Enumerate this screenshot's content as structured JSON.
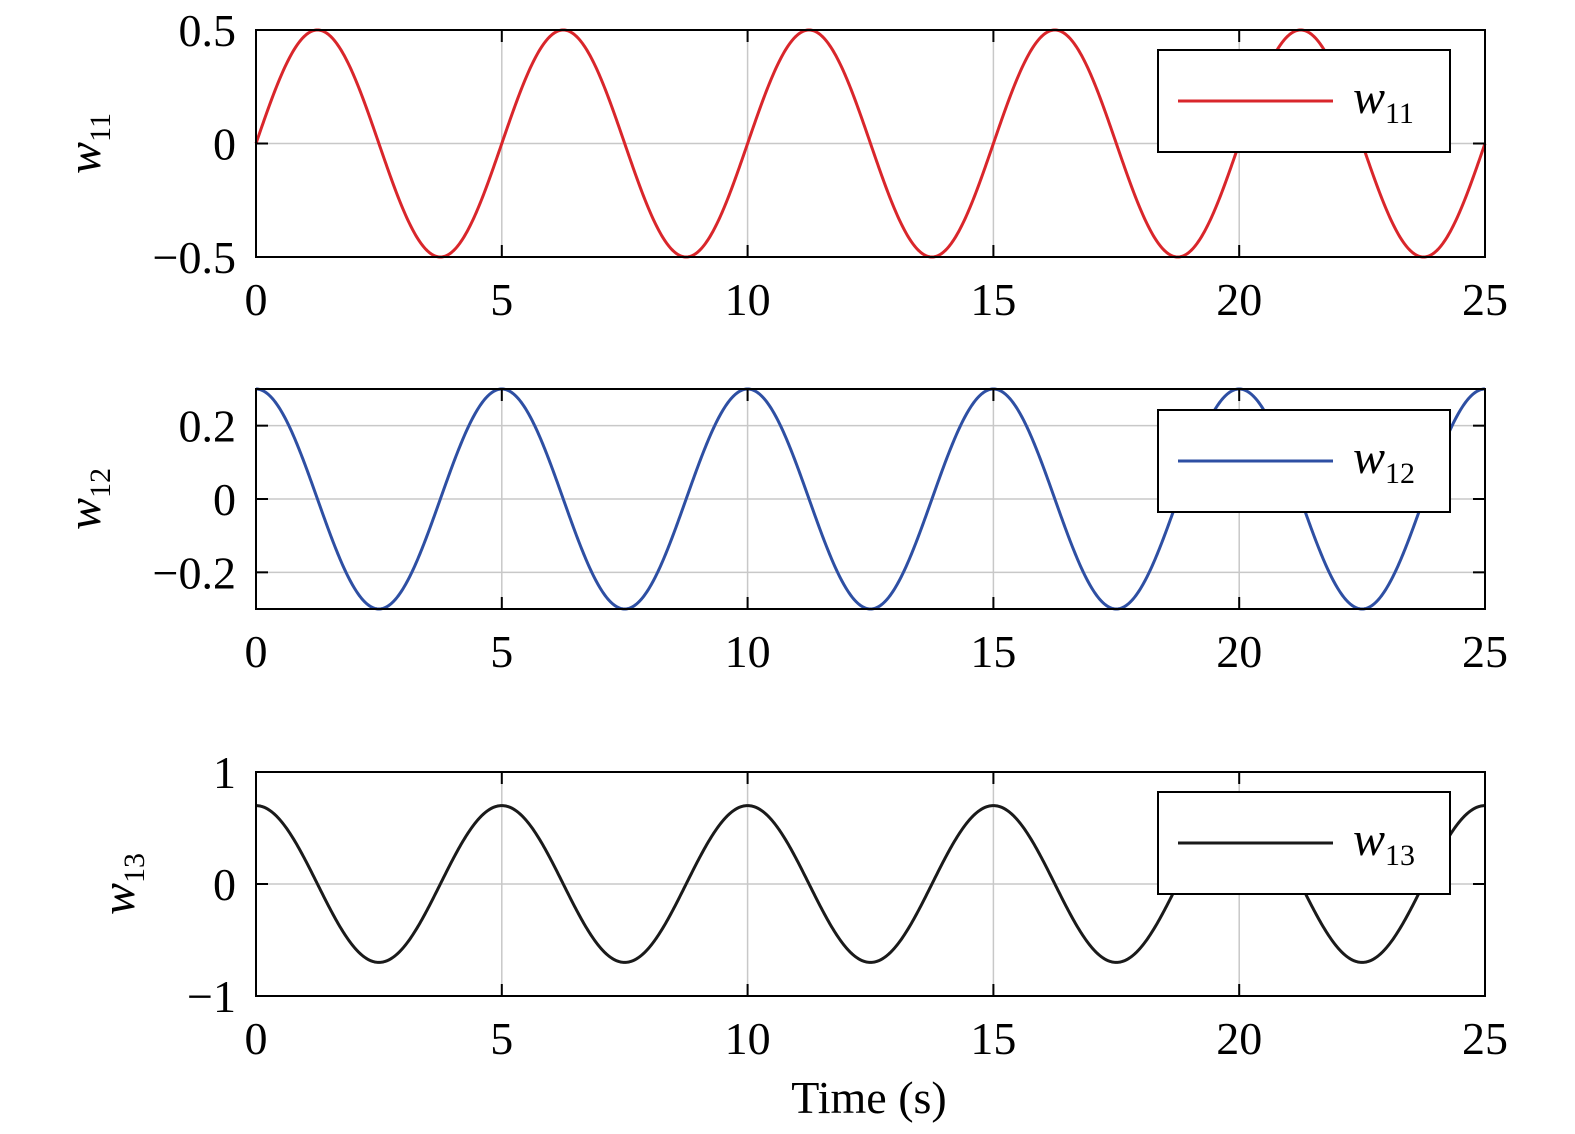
{
  "figure": {
    "xlabel": "Time (s)"
  },
  "chart_data": [
    {
      "type": "line",
      "ylabel": {
        "symbol": "w",
        "subscript": "11"
      },
      "xlim": [
        0,
        25
      ],
      "ylim": [
        -0.5,
        0.5
      ],
      "xticks": [
        0,
        5,
        10,
        15,
        20,
        25
      ],
      "xtick_labels": [
        "0",
        "5",
        "10",
        "15",
        "20",
        "25"
      ],
      "yticks": [
        -0.5,
        0,
        0.5
      ],
      "ytick_labels": [
        "−0.5",
        "0",
        "0.5"
      ],
      "grid": true,
      "legend": {
        "position": "top-right"
      },
      "series": [
        {
          "name": "w11",
          "label_symbol": "w",
          "label_subscript": "11",
          "color": "#d9262b",
          "amplitude": 0.5,
          "period": 5,
          "phase": 0,
          "function": "sin",
          "x_range": [
            0,
            25
          ]
        }
      ]
    },
    {
      "type": "line",
      "ylabel": {
        "symbol": "w",
        "subscript": "12"
      },
      "xlim": [
        0,
        25
      ],
      "ylim": [
        -0.3,
        0.3
      ],
      "xticks": [
        0,
        5,
        10,
        15,
        20,
        25
      ],
      "xtick_labels": [
        "0",
        "5",
        "10",
        "15",
        "20",
        "25"
      ],
      "yticks": [
        -0.2,
        0,
        0.2
      ],
      "ytick_labels": [
        "−0.2",
        "0",
        "0.2"
      ],
      "grid": true,
      "legend": {
        "position": "top-right"
      },
      "series": [
        {
          "name": "w12",
          "label_symbol": "w",
          "label_subscript": "12",
          "color": "#2e4fa3",
          "amplitude": 0.3,
          "period": 5,
          "phase": 0,
          "function": "cos",
          "x_range": [
            0,
            25
          ]
        }
      ]
    },
    {
      "type": "line",
      "ylabel": {
        "symbol": "w",
        "subscript": "13"
      },
      "xlim": [
        0,
        25
      ],
      "ylim": [
        -1,
        1
      ],
      "xticks": [
        0,
        5,
        10,
        15,
        20,
        25
      ],
      "xtick_labels": [
        "0",
        "5",
        "10",
        "15",
        "20",
        "25"
      ],
      "yticks": [
        -1,
        0,
        1
      ],
      "ytick_labels": [
        "−1",
        "0",
        "1"
      ],
      "grid": true,
      "legend": {
        "position": "top-right"
      },
      "series": [
        {
          "name": "w13",
          "label_symbol": "w",
          "label_subscript": "13",
          "color": "#1a1a1a",
          "amplitude": 0.7,
          "period": 5,
          "phase": 0,
          "function": "cos",
          "x_range": [
            0,
            25
          ]
        }
      ]
    }
  ]
}
